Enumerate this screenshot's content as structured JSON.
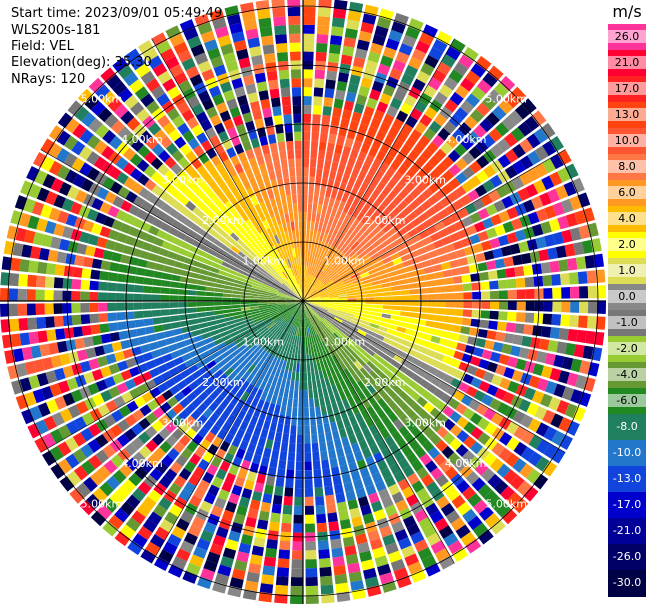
{
  "header": {
    "start_time": "Start time: 2023/09/01 05:49:49",
    "instrument": "WLS200s-181",
    "field": "Field: VEL",
    "elevation": "Elevation(deg): 35.30",
    "nrays": "NRays: 120"
  },
  "colorbar": {
    "unit": "m/s",
    "ticks": [
      "26.0",
      "21.0",
      "17.0",
      "13.0",
      "10.0",
      "8.0",
      "6.0",
      "4.0",
      "2.0",
      "1.0",
      "0.0",
      "-1.0",
      "-2.0",
      "-4.0",
      "-6.0",
      "-8.0",
      "-10.0",
      "-13.0",
      "-17.0",
      "-21.0",
      "-26.0",
      "-30.0"
    ],
    "colors": [
      "#ff3399",
      "#ff0033",
      "#ff2222",
      "#ff4411",
      "#ff5533",
      "#ff7744",
      "#ff9922",
      "#ffbb00",
      "#ffff00",
      "#dddd55",
      "#888888",
      "#777777",
      "#99cc33",
      "#669933",
      "#228822",
      "#1f7f5f",
      "#2277cc",
      "#1144dd",
      "#0000cc",
      "#000099",
      "#000066",
      "#000044"
    ]
  },
  "map": {
    "range_labels": [
      "1.00km",
      "2.00km",
      "3.00km",
      "4.00km",
      "5.00km"
    ],
    "nrays": 120
  }
}
